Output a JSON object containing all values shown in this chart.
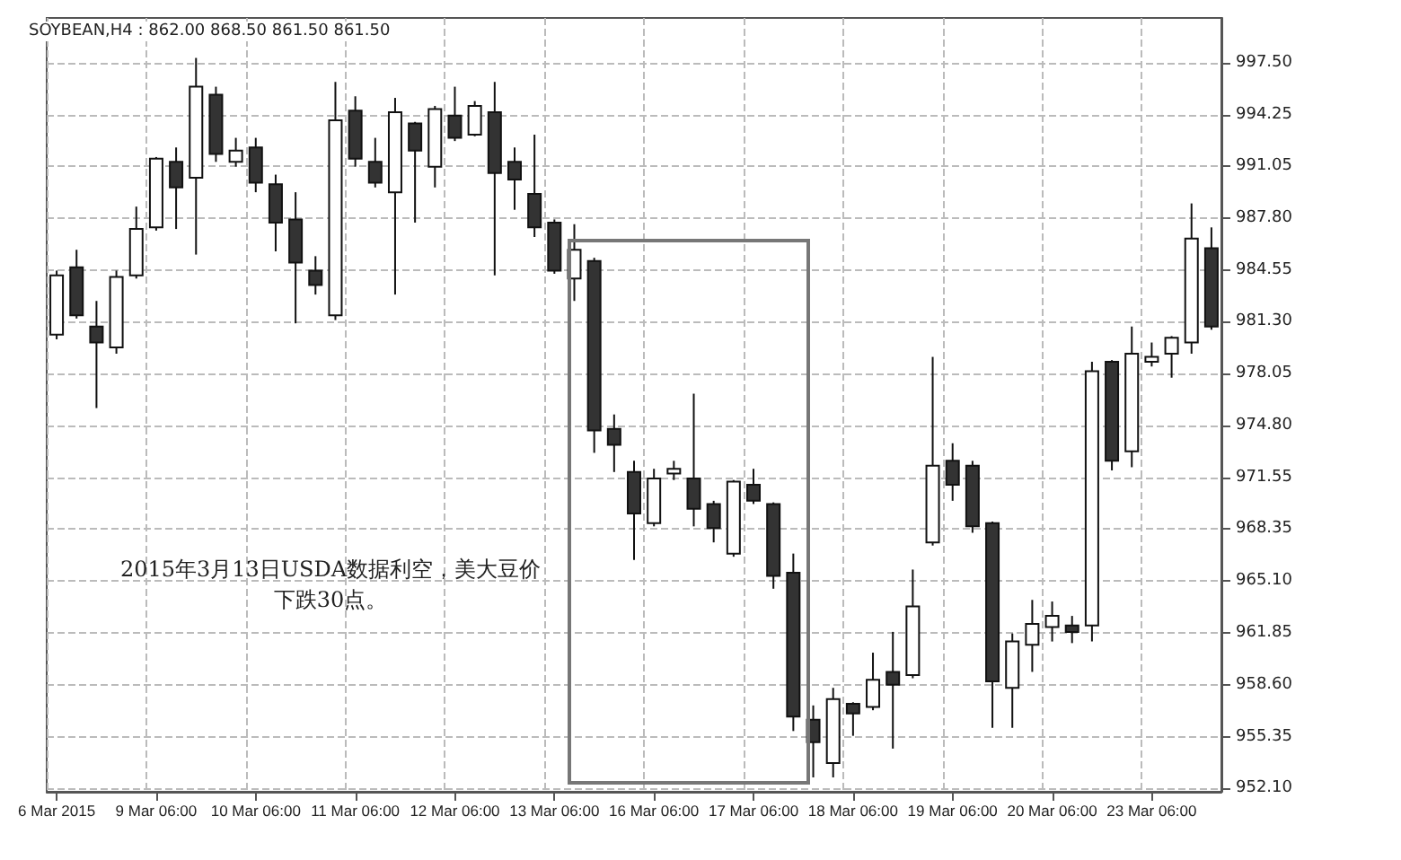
{
  "chart_data": {
    "type": "candlestick",
    "title": "SOYBEAN,H4 : 862.00 868.50 861.50 861.50",
    "annotations": [
      "2015年3月13日USDA数据利空，美大豆价下跌30点。"
    ],
    "categories": [
      "6 Mar 2015",
      null,
      null,
      null,
      null,
      "9 Mar 06:00",
      null,
      null,
      null,
      null,
      "10 Mar 06:00",
      null,
      null,
      null,
      null,
      "11 Mar 06:00",
      null,
      null,
      null,
      null,
      "12 Mar 06:00",
      null,
      null,
      null,
      null,
      "13 Mar 06:00",
      null,
      null,
      null,
      null,
      "16 Mar 06:00",
      null,
      null,
      null,
      null,
      "17 Mar 06:00",
      null,
      null,
      null,
      null,
      "18 Mar 06:00",
      null,
      null,
      null,
      null,
      "19 Mar 06:00",
      null,
      null,
      null,
      null,
      "20 Mar 06:00",
      null,
      null,
      null,
      null,
      "23 Mar 06:00",
      null,
      null,
      null
    ],
    "ohlc": [
      [
        980.5,
        984.5,
        980.2,
        984.2
      ],
      [
        984.7,
        985.8,
        981.5,
        981.7
      ],
      [
        981.0,
        982.6,
        975.9,
        980.0
      ],
      [
        979.7,
        984.5,
        979.3,
        984.1
      ],
      [
        984.2,
        988.5,
        984.0,
        987.1
      ],
      [
        987.2,
        991.6,
        987.0,
        991.5
      ],
      [
        991.3,
        992.2,
        987.1,
        989.7
      ],
      [
        990.3,
        997.8,
        985.5,
        996.0
      ],
      [
        995.5,
        996.0,
        991.3,
        991.8
      ],
      [
        991.3,
        992.8,
        991.0,
        992.0
      ],
      [
        992.2,
        992.8,
        989.4,
        990.0
      ],
      [
        989.9,
        990.5,
        985.7,
        987.5
      ],
      [
        987.7,
        989.4,
        981.2,
        985.0
      ],
      [
        984.5,
        985.4,
        983.0,
        983.6
      ],
      [
        981.7,
        996.3,
        981.4,
        993.9
      ],
      [
        994.5,
        995.4,
        991.0,
        991.5
      ],
      [
        991.3,
        992.8,
        989.7,
        990.0
      ],
      [
        989.4,
        995.3,
        983.0,
        994.4
      ],
      [
        993.7,
        993.8,
        987.5,
        992.0
      ],
      [
        991.0,
        994.8,
        989.7,
        994.6
      ],
      [
        994.2,
        996.0,
        992.6,
        992.8
      ],
      [
        993.0,
        995.1,
        992.9,
        994.8
      ],
      [
        994.4,
        996.3,
        984.2,
        990.6
      ],
      [
        991.3,
        992.2,
        988.3,
        990.2
      ],
      [
        989.3,
        993.0,
        986.6,
        987.2
      ],
      [
        987.5,
        987.7,
        984.3,
        984.5
      ],
      [
        984.0,
        987.4,
        982.6,
        985.8
      ],
      [
        985.1,
        985.3,
        973.1,
        974.5
      ],
      [
        974.6,
        975.5,
        971.9,
        973.6
      ],
      [
        971.9,
        972.6,
        966.4,
        969.3
      ],
      [
        968.7,
        972.1,
        968.5,
        971.5
      ],
      [
        971.8,
        972.6,
        971.4,
        972.1
      ],
      [
        971.5,
        976.8,
        968.5,
        969.6
      ],
      [
        969.9,
        970.1,
        967.5,
        968.4
      ],
      [
        966.8,
        971.4,
        966.6,
        971.3
      ],
      [
        971.1,
        972.1,
        969.9,
        970.1
      ],
      [
        969.9,
        970.0,
        964.6,
        965.4
      ],
      [
        965.6,
        966.8,
        955.7,
        956.6
      ],
      [
        956.4,
        957.3,
        952.8,
        955.0
      ],
      [
        953.7,
        958.4,
        952.8,
        957.7
      ],
      [
        957.4,
        957.5,
        955.4,
        956.8
      ],
      [
        957.2,
        960.6,
        957.0,
        958.9
      ],
      [
        959.4,
        961.9,
        954.6,
        958.6
      ],
      [
        959.2,
        965.8,
        959.0,
        963.5
      ],
      [
        967.5,
        979.1,
        967.3,
        972.3
      ],
      [
        972.6,
        973.7,
        970.1,
        971.1
      ],
      [
        972.3,
        972.6,
        968.1,
        968.5
      ],
      [
        968.7,
        968.8,
        955.9,
        958.8
      ],
      [
        958.4,
        961.8,
        955.9,
        961.3
      ],
      [
        961.1,
        963.9,
        959.4,
        962.4
      ],
      [
        962.2,
        963.8,
        961.3,
        962.9
      ],
      [
        962.3,
        962.9,
        961.2,
        961.9
      ],
      [
        962.3,
        978.8,
        961.3,
        978.2
      ],
      [
        978.8,
        978.9,
        972.0,
        972.6
      ],
      [
        973.2,
        981.0,
        972.2,
        979.3
      ],
      [
        978.8,
        980.0,
        978.5,
        979.1
      ],
      [
        979.3,
        980.4,
        977.8,
        980.3
      ],
      [
        980.0,
        988.7,
        979.3,
        986.5
      ],
      [
        985.9,
        987.2,
        980.8,
        981.0
      ]
    ],
    "ylim": [
      951.9,
      1000.3
    ],
    "yticks": [
      {
        "value": 997.5,
        "label": "997.50"
      },
      {
        "value": 994.25,
        "label": "994.25"
      },
      {
        "value": 991.05,
        "label": "991.05"
      },
      {
        "value": 987.8,
        "label": "987.80"
      },
      {
        "value": 984.55,
        "label": "984.55"
      },
      {
        "value": 981.3,
        "label": "981.30"
      },
      {
        "value": 978.05,
        "label": "978.05"
      },
      {
        "value": 974.8,
        "label": "974.80"
      },
      {
        "value": 971.55,
        "label": "971.55"
      },
      {
        "value": 968.35,
        "label": "968.35"
      },
      {
        "value": 965.1,
        "label": "965.10"
      },
      {
        "value": 961.85,
        "label": "961.85"
      },
      {
        "value": 958.6,
        "label": "958.60"
      },
      {
        "value": 955.35,
        "label": "955.35"
      },
      {
        "value": 952.1,
        "label": "952.10"
      }
    ],
    "grid": true
  }
}
